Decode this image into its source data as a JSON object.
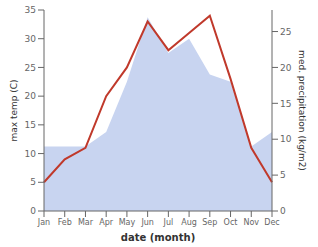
{
  "chart_data": {
    "type": "line",
    "categories": [
      "Jan",
      "Feb",
      "Mar",
      "Apr",
      "May",
      "Jun",
      "Jul",
      "Aug",
      "Sep",
      "Oct",
      "Nov",
      "Dec"
    ],
    "series": [
      {
        "type": "area",
        "axis": "y2",
        "color": "#c8d4f0",
        "values": [
          9,
          9,
          9,
          11,
          18,
          27,
          22,
          24,
          19,
          18,
          9,
          11
        ]
      },
      {
        "type": "line",
        "color": "#c0392b",
        "values": [
          5,
          9,
          11,
          20,
          25,
          33,
          28,
          31,
          34,
          23,
          11,
          5
        ]
      }
    ],
    "xlabel": "date (month)",
    "ylabel": "max temp (C)",
    "y2label": "med. precipitation (kg/m2)",
    "ylim": [
      0,
      35
    ],
    "yticks": [
      0,
      5,
      10,
      15,
      20,
      25,
      30,
      35
    ],
    "y2lim": [
      0,
      28
    ],
    "y2ticks": [
      0,
      5,
      10,
      15,
      20,
      25
    ],
    "grid": false
  }
}
